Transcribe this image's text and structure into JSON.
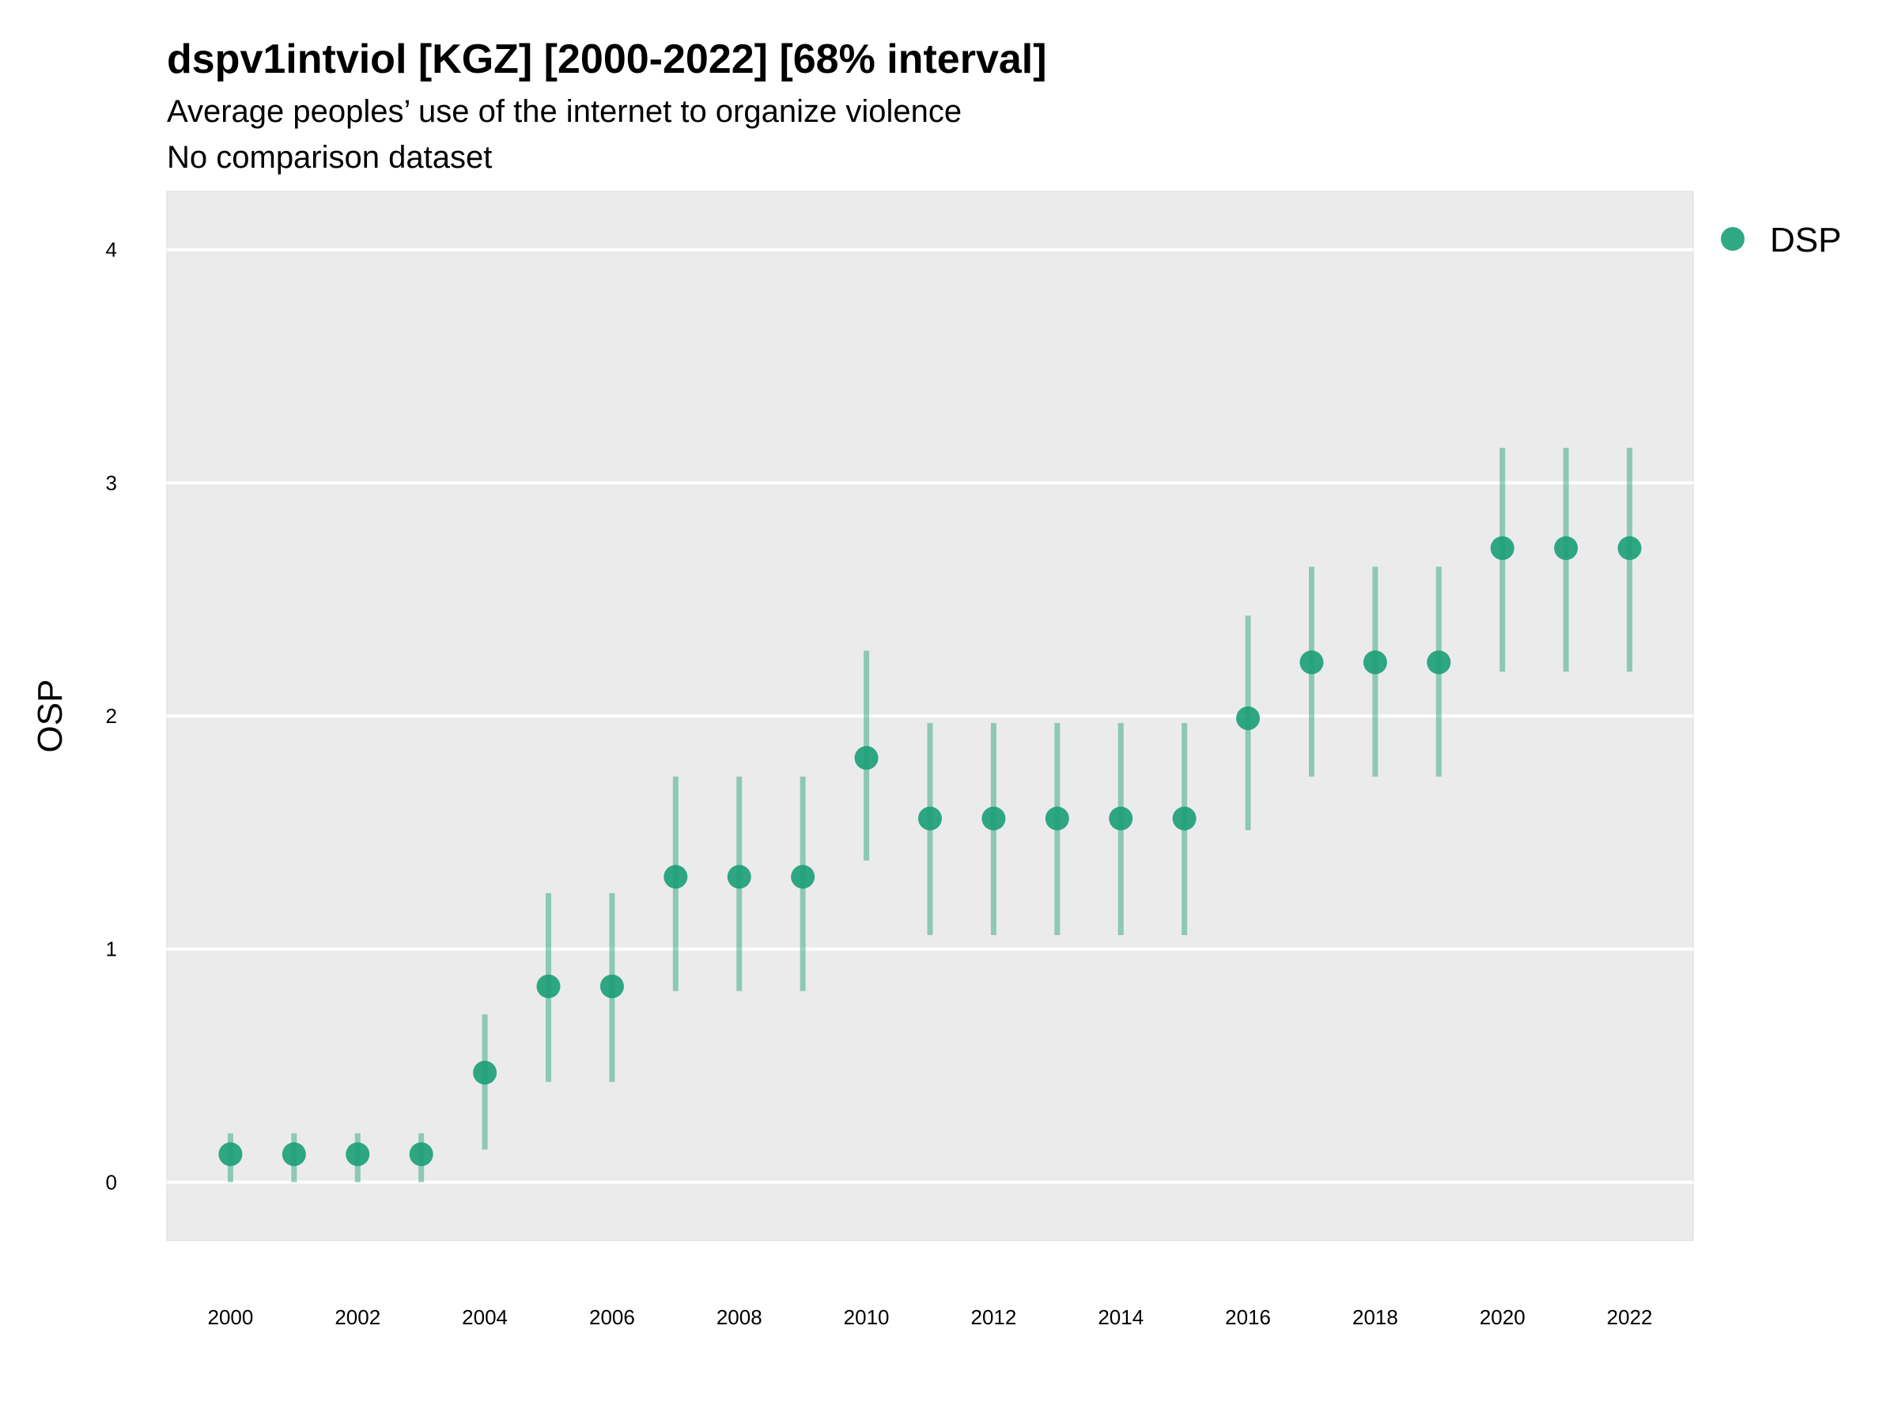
{
  "chart_data": {
    "type": "scatter",
    "title": "dspv1intviol [KGZ] [2000-2022] [68% interval]",
    "subtitle_lines": [
      "Average peoples’ use of the internet to organize violence",
      "No comparison dataset"
    ],
    "ylabel": "OSP",
    "xlabel": "",
    "ylim": [
      -0.25,
      4.25
    ],
    "xlim": [
      1999,
      2023
    ],
    "y_ticks": [
      "0",
      "1",
      "2",
      "3",
      "4"
    ],
    "x_ticks": [
      "2000",
      "2002",
      "2004",
      "2006",
      "2008",
      "2010",
      "2012",
      "2014",
      "2016",
      "2018",
      "2020",
      "2022"
    ],
    "grid": true,
    "legend_position": "right",
    "series": [
      {
        "name": "DSP",
        "color": "#1b9e77",
        "x": [
          2000,
          2001,
          2002,
          2003,
          2004,
          2005,
          2006,
          2007,
          2008,
          2009,
          2010,
          2011,
          2012,
          2013,
          2014,
          2015,
          2016,
          2017,
          2018,
          2019,
          2020,
          2021,
          2022
        ],
        "y": [
          0.12,
          0.12,
          0.12,
          0.12,
          0.47,
          0.84,
          0.84,
          1.31,
          1.31,
          1.31,
          1.82,
          1.56,
          1.56,
          1.56,
          1.56,
          1.56,
          1.99,
          2.23,
          2.23,
          2.23,
          2.72,
          2.72,
          2.72
        ],
        "lower": [
          0.0,
          0.0,
          0.0,
          0.0,
          0.14,
          0.43,
          0.43,
          0.82,
          0.82,
          0.82,
          1.38,
          1.06,
          1.06,
          1.06,
          1.06,
          1.06,
          1.51,
          1.74,
          1.74,
          1.74,
          2.19,
          2.19,
          2.19
        ],
        "upper": [
          0.21,
          0.21,
          0.21,
          0.21,
          0.72,
          1.24,
          1.24,
          1.74,
          1.74,
          1.74,
          2.28,
          1.97,
          1.97,
          1.97,
          1.97,
          1.97,
          2.43,
          2.64,
          2.64,
          2.64,
          3.15,
          3.15,
          3.15
        ]
      }
    ]
  }
}
